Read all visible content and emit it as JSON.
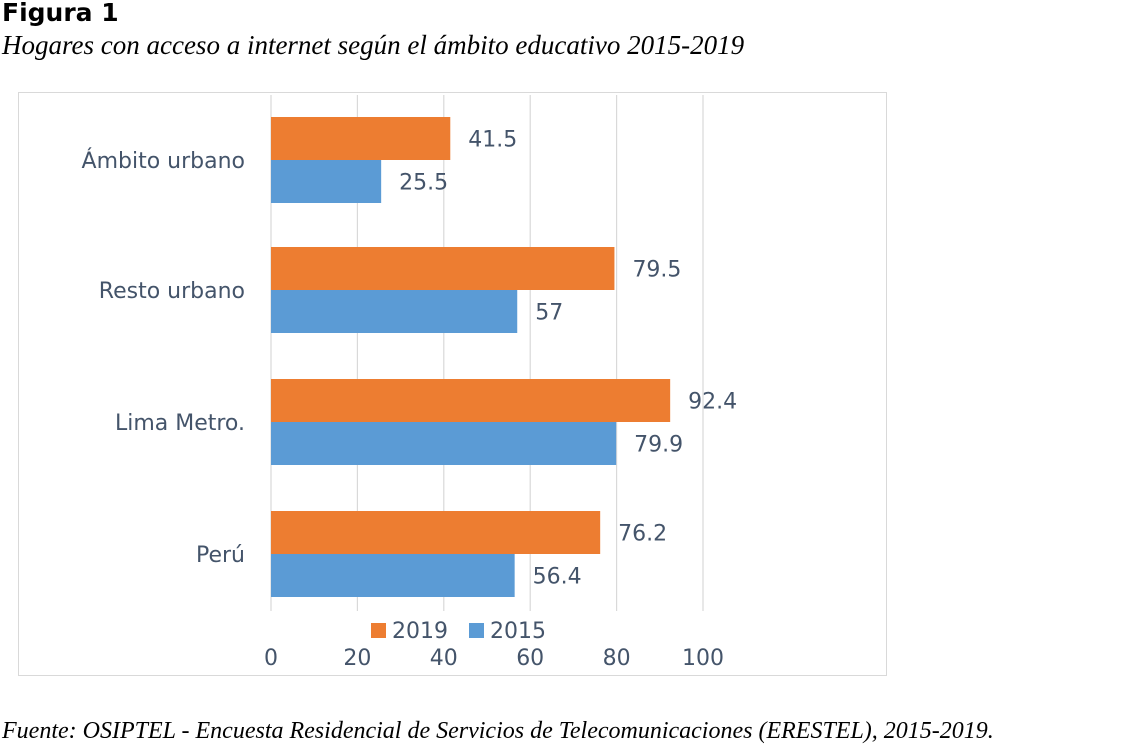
{
  "figure": {
    "label": "Figura 1",
    "title": "Hogares con acceso a internet según el ámbito educativo 2015-2019",
    "source": "Fuente: OSIPTEL - Encuesta Residencial de Servicios de Telecomunicaciones (ERESTEL), 2015-2019."
  },
  "chart_data": {
    "type": "bar",
    "orientation": "horizontal",
    "categories": [
      "Ámbito urbano",
      "Resto urbano",
      "Lima Metro.",
      "Perú"
    ],
    "series": [
      {
        "name": "2019",
        "color": "#ed7d31",
        "values": [
          41.5,
          79.5,
          92.4,
          76.2
        ],
        "labels": [
          "41.5",
          "79.5",
          "92.4",
          "76.2"
        ]
      },
      {
        "name": "2015",
        "color": "#5b9bd5",
        "values": [
          25.5,
          57,
          79.9,
          56.4
        ],
        "labels": [
          "25.5",
          "57",
          "79.9",
          "56.4"
        ]
      }
    ],
    "xlim": [
      0,
      100
    ],
    "x_ticks": [
      0,
      20,
      40,
      60,
      80,
      100
    ],
    "x_tick_labels": [
      "0",
      "20",
      "40",
      "60",
      "80",
      "100"
    ],
    "grid": "vertical",
    "legend": "bottom",
    "title": "",
    "xlabel": "",
    "ylabel": ""
  }
}
